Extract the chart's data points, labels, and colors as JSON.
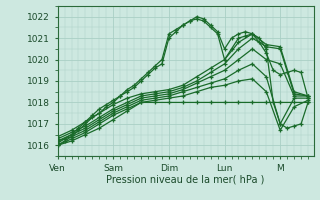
{
  "xlabel": "Pression niveau de la mer( hPa )",
  "xlim": [
    0,
    4.6
  ],
  "ylim": [
    1015.5,
    1022.5
  ],
  "yticks": [
    1016,
    1017,
    1018,
    1019,
    1020,
    1021,
    1022
  ],
  "xtick_positions": [
    0,
    1,
    2,
    3,
    4
  ],
  "xtick_labels": [
    "Ven",
    "Sam",
    "Dim",
    "Lun",
    "M"
  ],
  "bg_color": "#cde8e0",
  "grid_color": "#aacfc5",
  "line_color": "#1a6b2a",
  "series": [
    {
      "x": [
        0.0,
        0.125,
        0.25,
        0.375,
        0.5,
        0.625,
        0.75,
        0.875,
        1.0,
        1.125,
        1.25,
        1.375,
        1.5,
        1.625,
        1.75,
        1.875,
        2.0,
        2.125,
        2.25,
        2.375,
        2.5,
        2.625,
        2.75,
        2.875,
        3.0,
        3.125,
        3.25,
        3.375,
        3.5,
        3.625,
        3.75,
        3.875,
        4.0,
        4.125,
        4.25,
        4.375,
        4.5
      ],
      "y": [
        1016.0,
        1016.2,
        1016.4,
        1016.7,
        1017.0,
        1017.3,
        1017.5,
        1017.8,
        1018.0,
        1018.3,
        1018.5,
        1018.7,
        1019.0,
        1019.3,
        1019.6,
        1019.8,
        1021.0,
        1021.3,
        1021.6,
        1021.8,
        1021.9,
        1021.8,
        1021.5,
        1021.2,
        1020.0,
        1020.5,
        1021.0,
        1021.1,
        1021.2,
        1021.0,
        1020.5,
        1018.0,
        1017.0,
        1016.8,
        1016.9,
        1017.0,
        1018.0
      ]
    },
    {
      "x": [
        0.0,
        0.125,
        0.25,
        0.375,
        0.5,
        0.625,
        0.75,
        0.875,
        1.0,
        1.125,
        1.25,
        1.375,
        1.5,
        1.625,
        1.75,
        1.875,
        2.0,
        2.125,
        2.25,
        2.375,
        2.5,
        2.625,
        2.75,
        2.875,
        3.0,
        3.125,
        3.25,
        3.375,
        3.5,
        3.625,
        3.75,
        3.875,
        4.0,
        4.125,
        4.25,
        4.375,
        4.5
      ],
      "y": [
        1016.1,
        1016.3,
        1016.5,
        1016.8,
        1017.1,
        1017.4,
        1017.7,
        1017.9,
        1018.1,
        1018.3,
        1018.6,
        1018.8,
        1019.1,
        1019.4,
        1019.7,
        1020.0,
        1021.2,
        1021.4,
        1021.6,
        1021.8,
        1022.0,
        1021.9,
        1021.6,
        1021.3,
        1020.5,
        1021.0,
        1021.2,
        1021.3,
        1021.2,
        1020.8,
        1020.3,
        1019.5,
        1019.3,
        1019.4,
        1019.5,
        1019.4,
        1018.2
      ]
    },
    {
      "x": [
        0.0,
        0.25,
        0.5,
        0.75,
        1.0,
        1.25,
        1.5,
        1.75,
        2.0,
        2.25,
        2.5,
        2.75,
        3.0,
        3.25,
        3.5,
        3.75,
        4.0,
        4.25,
        4.5
      ],
      "y": [
        1016.0,
        1016.2,
        1016.5,
        1016.8,
        1017.2,
        1017.6,
        1018.0,
        1018.0,
        1018.0,
        1018.0,
        1018.0,
        1018.0,
        1018.0,
        1018.0,
        1018.0,
        1018.0,
        1018.0,
        1018.0,
        1018.0
      ]
    },
    {
      "x": [
        0.0,
        0.25,
        0.5,
        0.75,
        1.0,
        1.25,
        1.5,
        1.75,
        2.0,
        2.25,
        2.5,
        2.75,
        3.0,
        3.25,
        3.5,
        3.75,
        4.0,
        4.25,
        4.5
      ],
      "y": [
        1016.0,
        1016.3,
        1016.6,
        1017.0,
        1017.4,
        1017.7,
        1018.0,
        1018.1,
        1018.2,
        1018.3,
        1018.5,
        1018.7,
        1018.8,
        1019.0,
        1019.1,
        1018.5,
        1016.7,
        1017.8,
        1018.1
      ]
    },
    {
      "x": [
        0.0,
        0.25,
        0.5,
        0.75,
        1.0,
        1.25,
        1.5,
        1.75,
        2.0,
        2.25,
        2.5,
        2.75,
        3.0,
        3.25,
        3.5,
        3.75,
        4.0,
        4.25,
        4.5
      ],
      "y": [
        1016.2,
        1016.4,
        1016.7,
        1017.1,
        1017.5,
        1017.8,
        1018.1,
        1018.2,
        1018.3,
        1018.5,
        1018.7,
        1018.9,
        1019.1,
        1019.5,
        1019.8,
        1019.2,
        1017.0,
        1018.2,
        1018.2
      ]
    },
    {
      "x": [
        0.0,
        0.25,
        0.5,
        0.75,
        1.0,
        1.25,
        1.5,
        1.75,
        2.0,
        2.25,
        2.5,
        2.75,
        3.0,
        3.25,
        3.5,
        3.75,
        4.0,
        4.25,
        4.5
      ],
      "y": [
        1016.2,
        1016.5,
        1016.8,
        1017.2,
        1017.6,
        1017.9,
        1018.2,
        1018.3,
        1018.4,
        1018.6,
        1018.9,
        1019.2,
        1019.5,
        1020.0,
        1020.5,
        1020.0,
        1019.8,
        1018.3,
        1018.3
      ]
    },
    {
      "x": [
        0.0,
        0.25,
        0.5,
        0.75,
        1.0,
        1.25,
        1.5,
        1.75,
        2.0,
        2.25,
        2.5,
        2.75,
        3.0,
        3.25,
        3.5,
        3.75,
        4.0,
        4.25,
        4.5
      ],
      "y": [
        1016.3,
        1016.6,
        1016.9,
        1017.3,
        1017.7,
        1018.0,
        1018.3,
        1018.4,
        1018.5,
        1018.7,
        1019.0,
        1019.4,
        1019.8,
        1020.5,
        1021.0,
        1020.6,
        1020.5,
        1018.4,
        1018.3
      ]
    },
    {
      "x": [
        0.0,
        0.25,
        0.5,
        0.75,
        1.0,
        1.25,
        1.5,
        1.75,
        2.0,
        2.25,
        2.5,
        2.75,
        3.0,
        3.25,
        3.5,
        3.75,
        4.0,
        4.25,
        4.5
      ],
      "y": [
        1016.4,
        1016.7,
        1017.1,
        1017.5,
        1017.9,
        1018.2,
        1018.4,
        1018.5,
        1018.6,
        1018.8,
        1019.2,
        1019.6,
        1020.0,
        1020.8,
        1021.2,
        1020.7,
        1020.6,
        1018.5,
        1018.3
      ]
    }
  ]
}
